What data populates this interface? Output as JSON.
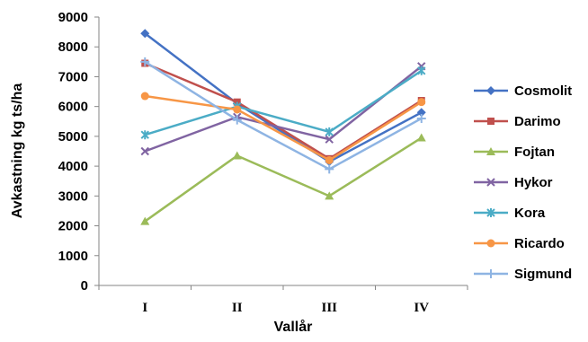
{
  "chart_data": {
    "type": "line",
    "title": "",
    "xlabel": "Vallår",
    "ylabel": "Avkastning kg ts/ha",
    "categories": [
      "I",
      "II",
      "III",
      "IV"
    ],
    "ylim": [
      0,
      9000
    ],
    "yticks": [
      0,
      1000,
      2000,
      3000,
      4000,
      5000,
      6000,
      7000,
      8000,
      9000
    ],
    "grid": false,
    "legend_position": "right",
    "series": [
      {
        "name": "Cosmolit",
        "values": [
          8450,
          6100,
          4150,
          5800
        ],
        "color": "#4472C4",
        "marker": "diamond"
      },
      {
        "name": "Darimo",
        "values": [
          7450,
          6150,
          4250,
          6200
        ],
        "color": "#C0504D",
        "marker": "square"
      },
      {
        "name": "Fojtan",
        "values": [
          2150,
          4350,
          3000,
          4950
        ],
        "color": "#9BBB59",
        "marker": "triangle"
      },
      {
        "name": "Hykor",
        "values": [
          4500,
          5650,
          4900,
          7350
        ],
        "color": "#8064A2",
        "marker": "x"
      },
      {
        "name": "Kora",
        "values": [
          5050,
          6000,
          5150,
          7200
        ],
        "color": "#4BACC6",
        "marker": "star"
      },
      {
        "name": "Ricardo",
        "values": [
          6350,
          5900,
          4200,
          6150
        ],
        "color": "#F79646",
        "marker": "circle"
      },
      {
        "name": "Sigmund",
        "values": [
          7500,
          5550,
          3900,
          5600
        ],
        "color": "#8EB4E3",
        "marker": "plus"
      }
    ]
  }
}
